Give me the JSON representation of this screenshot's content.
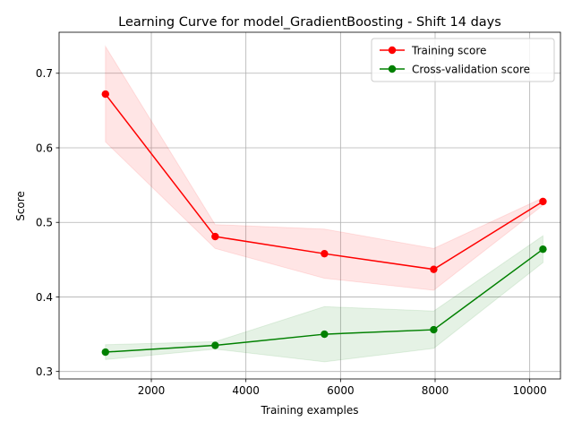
{
  "chart_data": {
    "type": "line",
    "title": "Learning Curve for model_GradientBoosting - Shift 14 days",
    "xlabel": "Training examples",
    "ylabel": "Score",
    "xlim": [
      50,
      10650
    ],
    "ylim": [
      0.29,
      0.755
    ],
    "xticks": [
      2000,
      4000,
      6000,
      8000,
      10000
    ],
    "xtick_labels": [
      "2000",
      "4000",
      "6000",
      "8000",
      "10000"
    ],
    "yticks": [
      0.3,
      0.4,
      0.5,
      0.6,
      0.7
    ],
    "ytick_labels": [
      "0.3",
      "0.4",
      "0.5",
      "0.6",
      "0.7"
    ],
    "grid": true,
    "legend_position": "top-right",
    "x": [
      1030,
      3350,
      5660,
      7970,
      10280
    ],
    "series": [
      {
        "name": "Training score",
        "color": "#ff0000",
        "band_color": "#ff0000",
        "values": [
          0.672,
          0.481,
          0.458,
          0.437,
          0.528
        ],
        "upper": [
          0.736,
          0.497,
          0.491,
          0.465,
          0.533
        ],
        "lower": [
          0.608,
          0.465,
          0.425,
          0.409,
          0.523
        ]
      },
      {
        "name": "Cross-validation score",
        "color": "#008000",
        "band_color": "#008000",
        "values": [
          0.326,
          0.335,
          0.35,
          0.356,
          0.464
        ],
        "upper": [
          0.336,
          0.34,
          0.387,
          0.381,
          0.482
        ],
        "lower": [
          0.316,
          0.33,
          0.313,
          0.331,
          0.446
        ]
      }
    ]
  }
}
